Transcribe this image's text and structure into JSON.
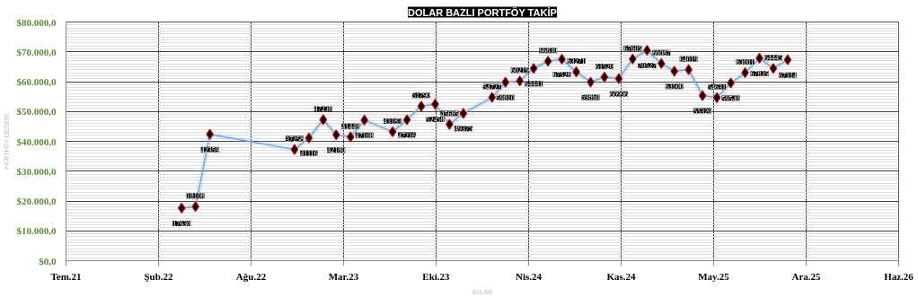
{
  "chart_data": {
    "type": "line",
    "title": "DOLAR BAZLI PORTFÖY TAKİP",
    "xlabel": "AYLAR",
    "ylabel": "PORTFÖY DEĞERİ",
    "x": [
      "2022-04-01",
      "2022-05-01",
      "2022-06-01",
      "2022-12-01",
      "2023-01-01",
      "2023-02-01",
      "2023-03-01",
      "2023-04-01",
      "2023-05-01",
      "2023-07-01",
      "2023-08-01",
      "2023-09-01",
      "2023-10-01",
      "2023-11-01",
      "2023-12-01",
      "2024-02-01",
      "2024-03-01",
      "2024-04-01",
      "2024-05-01",
      "2024-06-01",
      "2024-07-01",
      "2024-08-01",
      "2024-09-01",
      "2024-10-01",
      "2024-11-01",
      "2024-12-01",
      "2025-01-01",
      "2025-02-01",
      "2025-03-01",
      "2025-04-01",
      "2025-05-01",
      "2025-06-01",
      "2025-07-01",
      "2025-08-01",
      "2025-09-01",
      "2025-10-01",
      "2025-11-01"
    ],
    "series": [
      {
        "color": "#6fa8dc",
        "values": [
          17630,
          18108,
          42359,
          37258,
          41116,
          47238,
          42180,
          41448,
          47108,
          43183,
          47216,
          51790,
          52458,
          45685,
          49375,
          54727,
          59810,
          60219,
          64441,
          66830,
          67528,
          63271,
          59860,
          61520,
          60996,
          67605,
          70527,
          66087,
          63500,
          64019,
          55320,
          54631,
          59540,
          63001,
          67835,
          64445,
          67314
        ]
      }
    ],
    "marker": "diamond",
    "line_style": "solid",
    "data_labels": true,
    "grid": true,
    "xlim": [
      "2021-07-25",
      "2026-06-29"
    ],
    "xticks": [
      {
        "value": "2021-07-25",
        "label": "Tem.21"
      },
      {
        "value": "2022-02-10",
        "label": "Şub.22"
      },
      {
        "value": "2022-08-29",
        "label": "Ağu.22"
      },
      {
        "value": "2023-03-17",
        "label": "Mar.23"
      },
      {
        "value": "2023-10-03",
        "label": "Eki.23"
      },
      {
        "value": "2024-04-20",
        "label": "Nis.24"
      },
      {
        "value": "2024-11-06",
        "label": "Kas.24"
      },
      {
        "value": "2025-05-25",
        "label": "May.25"
      },
      {
        "value": "2025-12-11",
        "label": "Ara.25"
      },
      {
        "value": "2026-06-29",
        "label": "Haz.26"
      }
    ],
    "ylim": [
      0,
      80000
    ],
    "yticks": [
      {
        "value": 0,
        "label": "$0,0"
      },
      {
        "value": 10000,
        "label": "$10.000,0"
      },
      {
        "value": 20000,
        "label": "$20.000,0"
      },
      {
        "value": 30000,
        "label": "$30.000,0"
      },
      {
        "value": 40000,
        "label": "$40.000,0"
      },
      {
        "value": 50000,
        "label": "$50.000,0"
      },
      {
        "value": 60000,
        "label": "$60.000,0"
      },
      {
        "value": 70000,
        "label": "$70.000,0"
      },
      {
        "value": 80000,
        "label": "$80.000,0"
      }
    ]
  }
}
